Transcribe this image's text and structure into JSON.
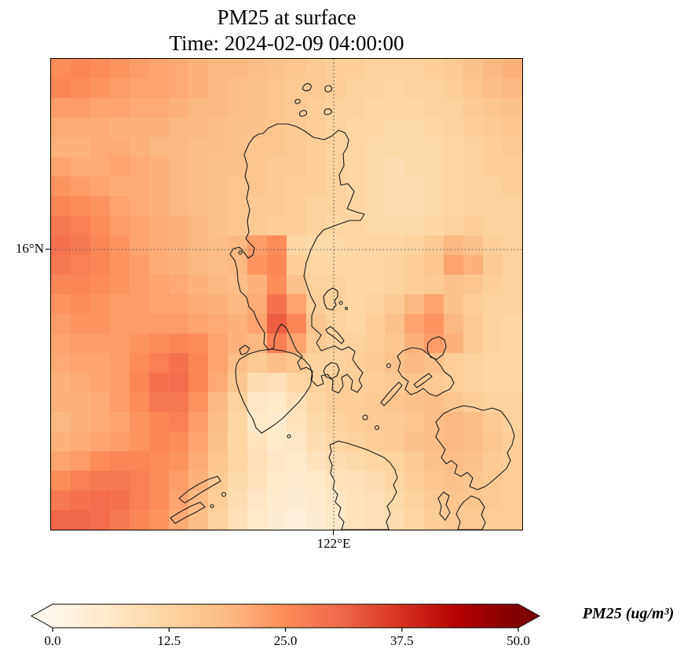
{
  "title": {
    "line1": "PM25 at surface",
    "line2": "Time: 2024-02-09 04:00:00"
  },
  "map": {
    "y_tick_label": "16°N",
    "x_tick_label": "122°E"
  },
  "colorbar": {
    "label": "PM25 (ug/m³)",
    "ticks": [
      "0.0",
      "12.5",
      "25.0",
      "37.5",
      "50.0"
    ],
    "vmin": 0,
    "vmax": 50,
    "stops": [
      "#fff7ec",
      "#fee8c8",
      "#fdd49e",
      "#fdbb84",
      "#fc8d59",
      "#ef6548",
      "#d7301f",
      "#b30000",
      "#7f0000"
    ]
  },
  "chart_data": {
    "type": "heatmap",
    "title": "PM25 at surface",
    "time": "2024-02-09 04:00:00",
    "variable": "PM25",
    "units": "ug/m3",
    "colormap": "OrRd",
    "vmin": 0,
    "vmax": 50,
    "colorbar_extend": "both",
    "x_gridline_label": "122°E",
    "y_gridline_label": "16°N",
    "nx": 24,
    "ny": 24,
    "values": [
      [
        25,
        26,
        25,
        24,
        23,
        22,
        21,
        20,
        19,
        19,
        18,
        17,
        16,
        15,
        14,
        14,
        13,
        13,
        13,
        14,
        15,
        17,
        19,
        20
      ],
      [
        26,
        25,
        24,
        23,
        22,
        22,
        21,
        20,
        19,
        18,
        17,
        16,
        15,
        15,
        14,
        13,
        13,
        12,
        13,
        13,
        14,
        16,
        18,
        19
      ],
      [
        23,
        23,
        22,
        22,
        21,
        21,
        20,
        19,
        19,
        18,
        17,
        16,
        15,
        14,
        13,
        13,
        12,
        12,
        12,
        13,
        13,
        15,
        16,
        17
      ],
      [
        21,
        21,
        21,
        20,
        20,
        20,
        19,
        19,
        18,
        17,
        17,
        16,
        15,
        14,
        13,
        12,
        12,
        11,
        11,
        12,
        13,
        14,
        15,
        16
      ],
      [
        20,
        20,
        21,
        21,
        20,
        19,
        19,
        18,
        18,
        17,
        16,
        16,
        15,
        14,
        13,
        12,
        11,
        11,
        11,
        11,
        12,
        13,
        14,
        15
      ],
      [
        22,
        21,
        21,
        22,
        21,
        20,
        19,
        18,
        17,
        17,
        16,
        15,
        15,
        14,
        13,
        12,
        11,
        10,
        11,
        11,
        12,
        13,
        14,
        14
      ],
      [
        24,
        23,
        22,
        21,
        21,
        20,
        19,
        18,
        17,
        16,
        16,
        15,
        14,
        14,
        13,
        12,
        11,
        10,
        10,
        11,
        12,
        13,
        13,
        14
      ],
      [
        26,
        25,
        24,
        22,
        21,
        20,
        19,
        18,
        17,
        16,
        15,
        15,
        14,
        13,
        13,
        12,
        11,
        10,
        10,
        11,
        12,
        13,
        13,
        13
      ],
      [
        28,
        27,
        25,
        23,
        22,
        21,
        20,
        19,
        17,
        16,
        15,
        14,
        14,
        13,
        12,
        12,
        11,
        11,
        11,
        12,
        13,
        14,
        13,
        13
      ],
      [
        29,
        28,
        26,
        24,
        22,
        21,
        20,
        19,
        18,
        19,
        23,
        25,
        12,
        11,
        11,
        12,
        12,
        12,
        13,
        15,
        19,
        17,
        14,
        13
      ],
      [
        28,
        27,
        26,
        24,
        23,
        21,
        20,
        19,
        18,
        19,
        24,
        26,
        14,
        12,
        12,
        12,
        12,
        13,
        14,
        16,
        22,
        20,
        15,
        13
      ],
      [
        26,
        26,
        25,
        24,
        23,
        22,
        21,
        20,
        19,
        18,
        20,
        25,
        17,
        13,
        13,
        12,
        12,
        13,
        14,
        15,
        17,
        16,
        14,
        13
      ],
      [
        24,
        25,
        24,
        23,
        23,
        22,
        22,
        21,
        20,
        19,
        21,
        29,
        22,
        14,
        13,
        12,
        13,
        15,
        19,
        22,
        17,
        14,
        13,
        13
      ],
      [
        23,
        24,
        24,
        23,
        23,
        23,
        23,
        22,
        21,
        20,
        22,
        32,
        26,
        16,
        13,
        12,
        14,
        17,
        22,
        24,
        19,
        15,
        13,
        12
      ],
      [
        22,
        23,
        23,
        23,
        24,
        25,
        26,
        25,
        22,
        20,
        19,
        27,
        22,
        15,
        13,
        13,
        14,
        16,
        20,
        23,
        20,
        15,
        13,
        12
      ],
      [
        21,
        22,
        22,
        23,
        25,
        27,
        29,
        26,
        22,
        18,
        15,
        18,
        16,
        13,
        13,
        14,
        15,
        17,
        19,
        17,
        14,
        13,
        12,
        12
      ],
      [
        20,
        21,
        22,
        23,
        26,
        29,
        30,
        26,
        21,
        16,
        10,
        9,
        12,
        13,
        14,
        14,
        14,
        15,
        16,
        15,
        14,
        13,
        12,
        12
      ],
      [
        20,
        20,
        21,
        23,
        25,
        28,
        28,
        24,
        19,
        13,
        7,
        6,
        9,
        12,
        14,
        14,
        15,
        16,
        17,
        18,
        16,
        14,
        13,
        13
      ],
      [
        19,
        20,
        21,
        22,
        24,
        26,
        27,
        23,
        18,
        12,
        6,
        5,
        8,
        11,
        13,
        14,
        15,
        15,
        16,
        18,
        19,
        18,
        15,
        13
      ],
      [
        20,
        21,
        22,
        23,
        24,
        26,
        25,
        22,
        17,
        12,
        8,
        6,
        7,
        10,
        12,
        13,
        14,
        15,
        17,
        18,
        19,
        18,
        16,
        14
      ],
      [
        22,
        23,
        25,
        26,
        26,
        25,
        24,
        21,
        16,
        12,
        9,
        7,
        6,
        8,
        10,
        11,
        12,
        13,
        15,
        17,
        18,
        17,
        15,
        14
      ],
      [
        25,
        27,
        28,
        28,
        27,
        25,
        23,
        20,
        15,
        11,
        8,
        6,
        5,
        6,
        8,
        9,
        10,
        12,
        14,
        16,
        17,
        16,
        15,
        14
      ],
      [
        28,
        29,
        30,
        29,
        27,
        25,
        22,
        19,
        14,
        10,
        7,
        5,
        4,
        5,
        7,
        8,
        9,
        11,
        13,
        15,
        16,
        16,
        15,
        14
      ],
      [
        31,
        31,
        30,
        28,
        26,
        24,
        21,
        18,
        13,
        9,
        6,
        4,
        3,
        4,
        6,
        8,
        9,
        10,
        12,
        14,
        15,
        15,
        14,
        14
      ]
    ]
  }
}
